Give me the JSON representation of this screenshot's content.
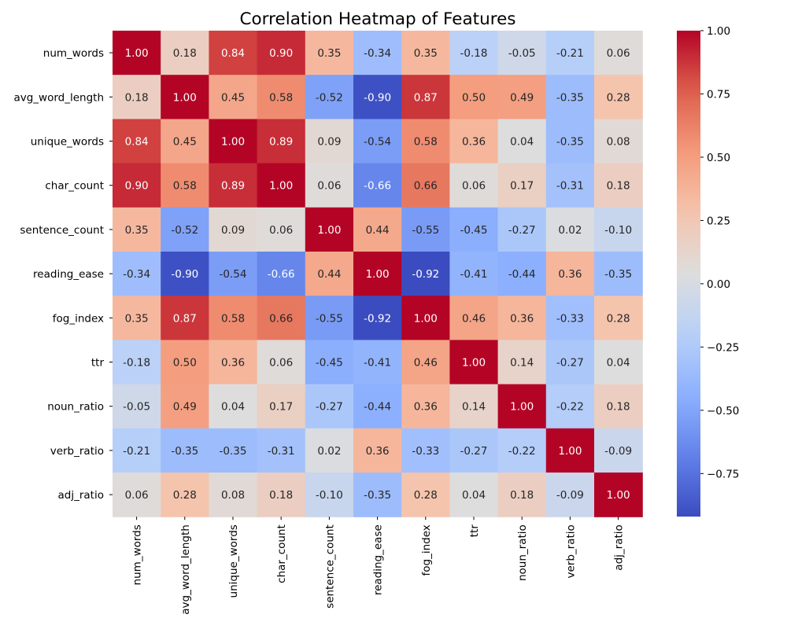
{
  "chart_data": {
    "type": "heatmap",
    "title": "Correlation Heatmap of Features",
    "xlabel": "",
    "ylabel": "",
    "rows": [
      "num_words",
      "avg_word_length",
      "unique_words",
      "char_count",
      "sentence_count",
      "reading_ease",
      "fog_index",
      "ttr",
      "noun_ratio",
      "verb_ratio",
      "adj_ratio"
    ],
    "columns": [
      "num_words",
      "avg_word_length",
      "unique_words",
      "char_count",
      "sentence_count",
      "reading_ease",
      "fog_index",
      "ttr",
      "noun_ratio",
      "verb_ratio",
      "adj_ratio"
    ],
    "values": [
      [
        1.0,
        0.18,
        0.84,
        0.9,
        0.35,
        -0.34,
        0.35,
        -0.18,
        -0.05,
        -0.21,
        0.06
      ],
      [
        0.18,
        1.0,
        0.45,
        0.58,
        -0.52,
        -0.9,
        0.87,
        0.5,
        0.49,
        -0.35,
        0.28
      ],
      [
        0.84,
        0.45,
        1.0,
        0.89,
        0.09,
        -0.54,
        0.58,
        0.36,
        0.04,
        -0.35,
        0.08
      ],
      [
        0.9,
        0.58,
        0.89,
        1.0,
        0.06,
        -0.66,
        0.66,
        0.06,
        0.17,
        -0.31,
        0.18
      ],
      [
        0.35,
        -0.52,
        0.09,
        0.06,
        1.0,
        0.44,
        -0.55,
        -0.45,
        -0.27,
        0.02,
        -0.1
      ],
      [
        -0.34,
        -0.9,
        -0.54,
        -0.66,
        0.44,
        1.0,
        -0.92,
        -0.41,
        -0.44,
        0.36,
        -0.35
      ],
      [
        0.35,
        0.87,
        0.58,
        0.66,
        -0.55,
        -0.92,
        1.0,
        0.46,
        0.36,
        -0.33,
        0.28
      ],
      [
        -0.18,
        0.5,
        0.36,
        0.06,
        -0.45,
        -0.41,
        0.46,
        1.0,
        0.14,
        -0.27,
        0.04
      ],
      [
        -0.05,
        0.49,
        0.04,
        0.17,
        -0.27,
        -0.44,
        0.36,
        0.14,
        1.0,
        -0.22,
        0.18
      ],
      [
        -0.21,
        -0.35,
        -0.35,
        -0.31,
        0.02,
        0.36,
        -0.33,
        -0.27,
        -0.22,
        1.0,
        -0.09
      ],
      [
        0.06,
        0.28,
        0.08,
        0.18,
        -0.1,
        -0.35,
        0.28,
        0.04,
        0.18,
        -0.09,
        1.0
      ]
    ],
    "colormap": "coolwarm",
    "vmin": -0.92,
    "vmax": 1.0,
    "annotated": true,
    "colorbar": {
      "ticks": [
        1.0,
        0.75,
        0.5,
        0.25,
        0.0,
        -0.25,
        -0.5,
        -0.75
      ],
      "tick_labels": [
        "1.00",
        "0.75",
        "0.50",
        "0.25",
        "0.00",
        "−0.25",
        "−0.50",
        "−0.75"
      ]
    }
  }
}
